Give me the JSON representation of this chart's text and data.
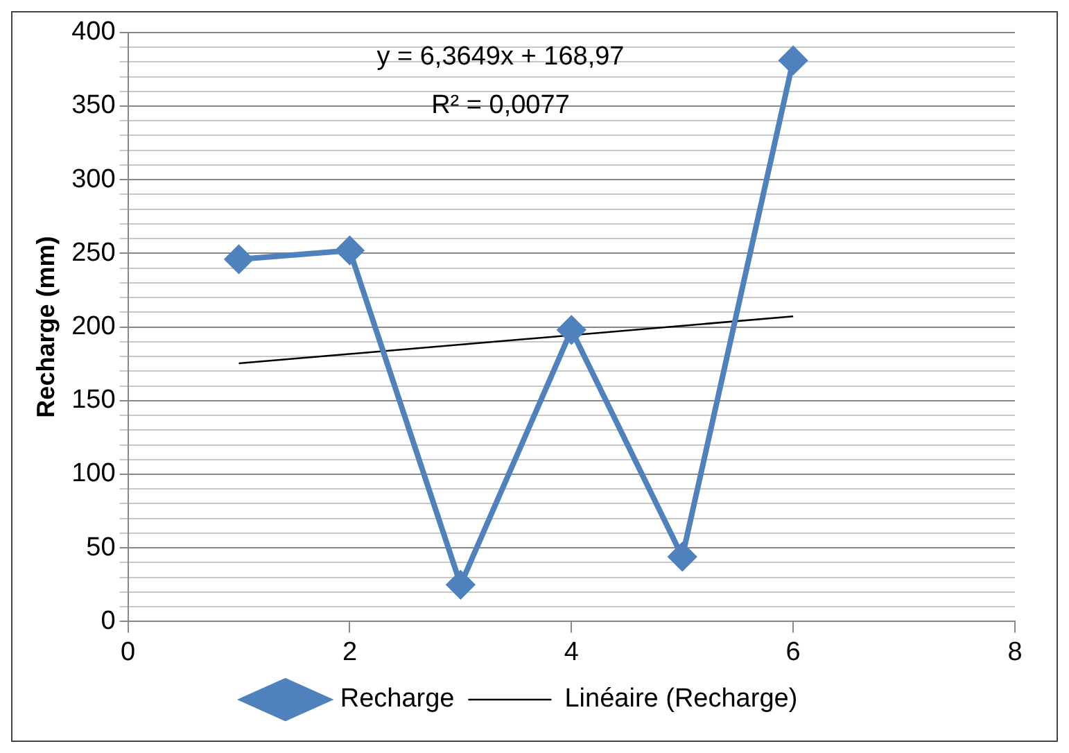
{
  "chart_data": {
    "type": "line",
    "ylabel": "Recharge (mm)",
    "annotations": [
      "y = 6,3649x + 168,97",
      "R² = 0,0077"
    ],
    "xlim": [
      0,
      8
    ],
    "xticks": [
      0,
      2,
      4,
      6,
      8
    ],
    "ylim": [
      0,
      400
    ],
    "yticks": [
      0,
      {
        "value": 10,
        "label": null
      },
      {
        "value": 20,
        "label": null
      },
      {
        "value": 30,
        "label": null
      },
      {
        "value": 40,
        "label": null
      },
      50,
      {
        "value": 60,
        "label": null
      },
      {
        "value": 70,
        "label": null
      },
      {
        "value": 80,
        "label": null
      },
      {
        "value": 90,
        "label": null
      },
      100,
      {
        "value": 110,
        "label": null
      },
      {
        "value": 120,
        "label": null
      },
      {
        "value": 130,
        "label": null
      },
      {
        "value": 140,
        "label": null
      },
      150,
      {
        "value": 160,
        "label": null
      },
      {
        "value": 170,
        "label": null
      },
      {
        "value": 180,
        "label": null
      },
      {
        "value": 190,
        "label": null
      },
      200,
      {
        "value": 210,
        "label": null
      },
      {
        "value": 220,
        "label": null
      },
      {
        "value": 230,
        "label": null
      },
      {
        "value": 240,
        "label": null
      },
      250,
      {
        "value": 260,
        "label": null
      },
      {
        "value": 270,
        "label": null
      },
      {
        "value": 280,
        "label": null
      },
      {
        "value": 290,
        "label": null
      },
      300,
      {
        "value": 310,
        "label": null
      },
      {
        "value": 320,
        "label": null
      },
      {
        "value": 330,
        "label": null
      },
      {
        "value": 340,
        "label": null
      },
      350,
      {
        "value": 360,
        "label": null
      },
      {
        "value": 370,
        "label": null
      },
      {
        "value": 380,
        "label": null
      },
      {
        "value": 390,
        "label": null
      },
      400
    ],
    "grid": "y",
    "legend": "bottom",
    "series": [
      {
        "name": "Recharge",
        "color": "#4f81bd",
        "x": [
          1,
          2,
          3,
          4,
          5,
          6
        ],
        "values": [
          246,
          252,
          25,
          198,
          44,
          381
        ],
        "marker": "diamond",
        "line_style": "solid"
      },
      {
        "name": "Linéaire (Recharge)",
        "type": "line",
        "color": "#000000",
        "x": [
          1,
          6
        ],
        "values": [
          175.3,
          207.2
        ],
        "marker": "none",
        "line_style": "solid"
      }
    ]
  }
}
